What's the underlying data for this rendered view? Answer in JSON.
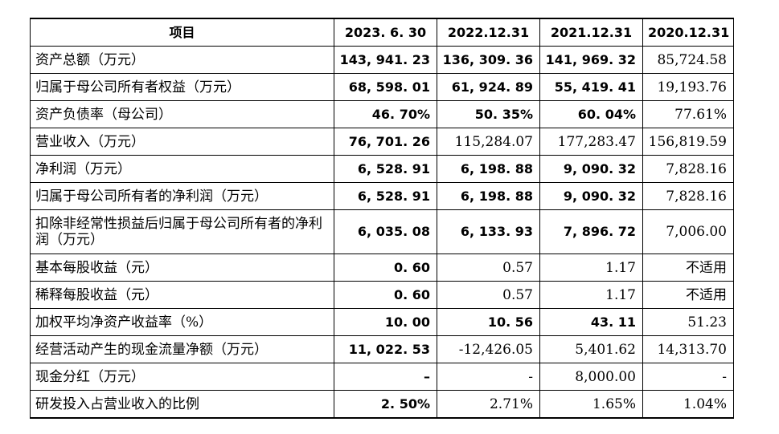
{
  "table": {
    "headers": [
      "项目",
      "2023. 6. 30",
      "2022.12.31",
      "2021.12.31",
      "2020.12.31"
    ],
    "rows": [
      {
        "label": "资产总额（万元）",
        "values": [
          "143, 941. 23",
          "136, 309. 36",
          "141, 969. 32",
          "85,724.58"
        ],
        "bold": [
          true,
          true,
          true,
          false
        ]
      },
      {
        "label": "归属于母公司所有者权益（万元）",
        "values": [
          "68, 598. 01",
          "61, 924. 89",
          "55, 419. 41",
          "19,193.76"
        ],
        "bold": [
          true,
          true,
          true,
          false
        ]
      },
      {
        "label": "资产负债率（母公司）",
        "values": [
          "46. 70%",
          "50. 35%",
          "60. 04%",
          "77.61%"
        ],
        "bold": [
          true,
          true,
          true,
          false
        ]
      },
      {
        "label": "营业收入（万元）",
        "values": [
          "76, 701. 26",
          "115,284.07",
          "177,283.47",
          "156,819.59"
        ],
        "bold": [
          true,
          false,
          false,
          false
        ]
      },
      {
        "label": "净利润（万元）",
        "values": [
          "6, 528. 91",
          "6, 198. 88",
          "9, 090. 32",
          "7,828.16"
        ],
        "bold": [
          true,
          true,
          true,
          false
        ]
      },
      {
        "label": "归属于母公司所有者的净利润（万元）",
        "values": [
          "6, 528. 91",
          "6, 198. 88",
          "9, 090. 32",
          "7,828.16"
        ],
        "bold": [
          true,
          true,
          true,
          false
        ]
      },
      {
        "label": "扣除非经常性损益后归属于母公司所有者的净利润（万元）",
        "values": [
          "6, 035. 08",
          "6, 133. 93",
          "7, 896. 72",
          "7,006.00"
        ],
        "bold": [
          true,
          true,
          true,
          false
        ],
        "tall": true
      },
      {
        "label": "基本每股收益（元）",
        "values": [
          "0. 60",
          "0.57",
          "1.17",
          "不适用"
        ],
        "bold": [
          true,
          false,
          false,
          false
        ]
      },
      {
        "label": "稀释每股收益（元）",
        "values": [
          "0. 60",
          "0.57",
          "1.17",
          "不适用"
        ],
        "bold": [
          true,
          false,
          false,
          false
        ]
      },
      {
        "label": "加权平均净资产收益率（%）",
        "values": [
          "10. 00",
          "10. 56",
          "43. 11",
          "51.23"
        ],
        "bold": [
          true,
          true,
          true,
          false
        ]
      },
      {
        "label": "经营活动产生的现金流量净额（万元）",
        "values": [
          "11, 022. 53",
          "-12,426.05",
          "5,401.62",
          "14,313.70"
        ],
        "bold": [
          true,
          false,
          false,
          false
        ]
      },
      {
        "label": "现金分红（万元）",
        "values": [
          "–",
          "-",
          "8,000.00",
          "-"
        ],
        "bold": [
          true,
          false,
          false,
          false
        ]
      },
      {
        "label": "研发投入占营业收入的比例",
        "values": [
          "2. 50%",
          "2.71%",
          "1.65%",
          "1.04%"
        ],
        "bold": [
          true,
          false,
          false,
          false
        ]
      }
    ]
  }
}
